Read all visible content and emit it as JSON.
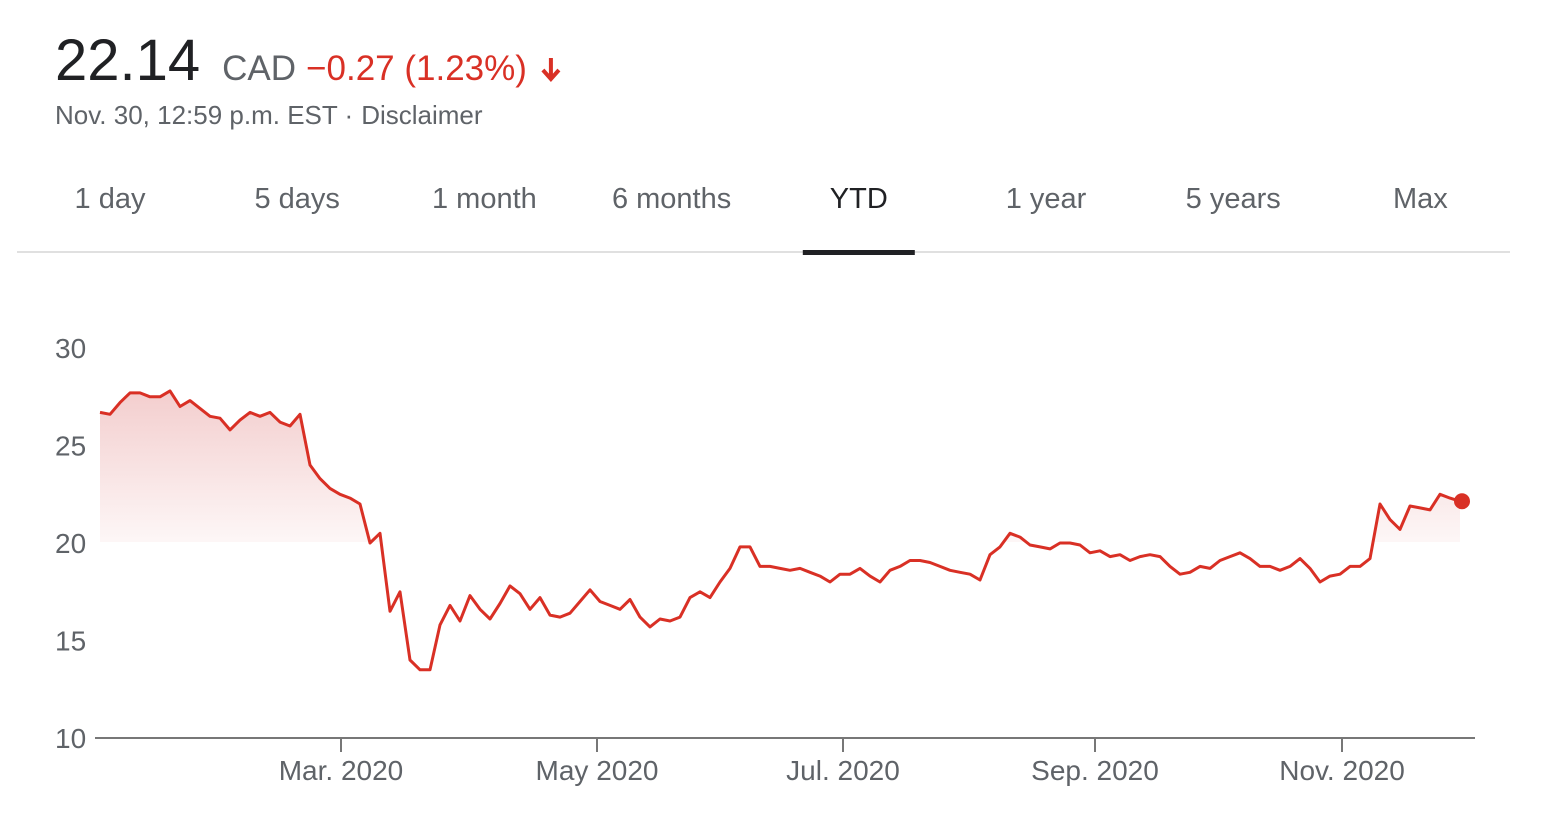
{
  "header": {
    "price": "22.14",
    "currency": "CAD",
    "change": "−0.27 (1.23%)",
    "timestamp": "Nov. 30, 12:59 p.m. EST ·",
    "disclaimer": "Disclaimer"
  },
  "tabs": [
    "1 day",
    "5 days",
    "1 month",
    "6 months",
    "YTD",
    "1 year",
    "5 years",
    "Max"
  ],
  "selected_tab": 4,
  "chart_data": {
    "type": "line",
    "color": "#d93025",
    "values": [
      26.7,
      26.6,
      27.2,
      27.7,
      27.7,
      27.5,
      27.5,
      27.8,
      27.0,
      27.3,
      26.9,
      26.5,
      26.4,
      25.8,
      26.3,
      26.7,
      26.5,
      26.7,
      26.2,
      26.0,
      26.6,
      24.0,
      23.3,
      22.8,
      22.5,
      22.3,
      22.0,
      20.0,
      20.5,
      16.5,
      17.5,
      14.0,
      13.5,
      13.5,
      15.8,
      16.8,
      16.0,
      17.3,
      16.6,
      16.1,
      16.9,
      17.8,
      17.4,
      16.6,
      17.2,
      16.3,
      16.2,
      16.4,
      17.0,
      17.6,
      17.0,
      16.8,
      16.6,
      17.1,
      16.2,
      15.7,
      16.1,
      16.0,
      16.2,
      17.2,
      17.5,
      17.2,
      18.0,
      18.7,
      19.8,
      19.8,
      18.8,
      18.8,
      18.7,
      18.6,
      18.7,
      18.5,
      18.3,
      18.0,
      18.4,
      18.4,
      18.7,
      18.3,
      18.0,
      18.6,
      18.8,
      19.1,
      19.1,
      19.0,
      18.8,
      18.6,
      18.5,
      18.4,
      18.1,
      19.4,
      19.8,
      20.5,
      20.3,
      19.9,
      19.8,
      19.7,
      20.0,
      20.0,
      19.9,
      19.5,
      19.6,
      19.3,
      19.4,
      19.1,
      19.3,
      19.4,
      19.3,
      18.8,
      18.4,
      18.5,
      18.8,
      18.7,
      19.1,
      19.3,
      19.5,
      19.2,
      18.8,
      18.8,
      18.6,
      18.8,
      19.2,
      18.7,
      18.0,
      18.3,
      18.4,
      18.8,
      18.8,
      19.2,
      22.0,
      21.2,
      20.7,
      21.9,
      21.8,
      21.7,
      22.5,
      22.3,
      22.14
    ],
    "xlim": [
      0,
      136
    ],
    "xticks": [
      {
        "value": 24.1,
        "label": "Mar. 2020"
      },
      {
        "value": 49.7,
        "label": "May 2020"
      },
      {
        "value": 74.3,
        "label": "Jul. 2020"
      },
      {
        "value": 99.5,
        "label": "Sep. 2020"
      },
      {
        "value": 124.2,
        "label": "Nov. 2020"
      }
    ],
    "ylim": [
      10,
      30
    ],
    "yticks": [
      10,
      15,
      20,
      25,
      30
    ]
  }
}
